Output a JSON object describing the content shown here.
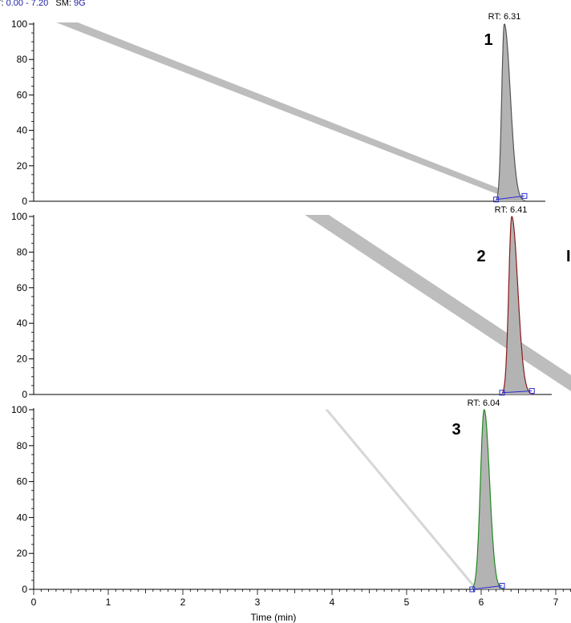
{
  "header": {
    "rt_label": "T:",
    "rt_range": "0.00 - 7.20",
    "sm_label": "SM:",
    "sm_value": "9G"
  },
  "chart_data": [
    {
      "type": "line",
      "panel": "1",
      "title": "",
      "ylim": [
        0,
        100
      ],
      "yticks": [
        "0",
        "20",
        "40",
        "60",
        "80",
        "100"
      ],
      "peak_label": "RT: 6.31",
      "peak": {
        "rt": 6.31,
        "height": 100,
        "start": 6.2,
        "end": 6.6,
        "color": "#555555"
      },
      "baseline": [
        [
          6.2,
          1
        ],
        [
          6.58,
          3
        ]
      ]
    },
    {
      "type": "line",
      "panel": "2",
      "title": "",
      "ylim": [
        0,
        100
      ],
      "yticks": [
        "0",
        "20",
        "40",
        "60",
        "80",
        "100"
      ],
      "peak_label": "RT: 6.41",
      "peak": {
        "rt": 6.41,
        "height": 100,
        "start": 6.28,
        "end": 6.7,
        "color": "#8b1a1a"
      },
      "baseline": [
        [
          6.28,
          1
        ],
        [
          6.68,
          2
        ]
      ],
      "side_label": "I"
    },
    {
      "type": "line",
      "panel": "3",
      "title": "",
      "ylim": [
        0,
        100
      ],
      "yticks": [
        "0",
        "20",
        "40",
        "60",
        "80",
        "100"
      ],
      "peak_label": "RT: 6.04",
      "peak": {
        "rt": 6.04,
        "height": 100,
        "start": 5.88,
        "end": 6.3,
        "color": "#1f8a1f"
      },
      "baseline": [
        [
          5.88,
          0
        ],
        [
          6.28,
          2
        ]
      ],
      "xlim": [
        0,
        7.2
      ],
      "xticks": [
        "0",
        "1",
        "2",
        "3",
        "4",
        "5",
        "6",
        "7"
      ],
      "xlabel": "Time (min)"
    }
  ]
}
